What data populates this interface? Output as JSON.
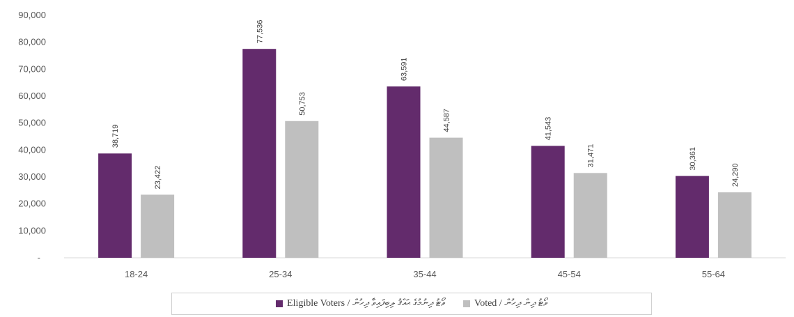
{
  "chart_data": {
    "type": "bar",
    "categories": [
      "18-24",
      "25-34",
      "35-44",
      "45-54",
      "55-64"
    ],
    "series": [
      {
        "name": "Eligible Voters / ވޯޓު ދިނުމުގެ ޙައްޤު ލިބިފައިވާ ދިހުން",
        "color": "#632b6c",
        "values": [
          38719,
          77536,
          63591,
          41543,
          30361
        ]
      },
      {
        "name": "Voted / ވޯޓު ދިން ދިހުން",
        "color": "#bfbfbf",
        "values": [
          23422,
          50753,
          44587,
          31471,
          24290
        ]
      }
    ],
    "value_labels": [
      [
        "38,719",
        "77,536",
        "63,591",
        "41,543",
        "30,361"
      ],
      [
        "23,422",
        "50,753",
        "44,587",
        "31,471",
        "24,290"
      ]
    ],
    "y_ticks": [
      {
        "value": 0,
        "label": "-"
      },
      {
        "value": 10000,
        "label": "10,000"
      },
      {
        "value": 20000,
        "label": "20,000"
      },
      {
        "value": 30000,
        "label": "30,000"
      },
      {
        "value": 40000,
        "label": "40,000"
      },
      {
        "value": 50000,
        "label": "50,000"
      },
      {
        "value": 60000,
        "label": "60,000"
      },
      {
        "value": 70000,
        "label": "70,000"
      },
      {
        "value": 80000,
        "label": "80,000"
      },
      {
        "value": 90000,
        "label": "90,000"
      }
    ],
    "ylim": [
      0,
      90000
    ],
    "grid": false,
    "legend_position": "bottom",
    "title": "",
    "xlabel": "",
    "ylabel": ""
  },
  "legend": {
    "eligible_label": "Eligible  Voters / ވޯޓު ދިނުމުގެ ޙައްޤު ލިބިފައިވާ ދިހުން",
    "voted_label": "Voted / ވޯޓު ދިން ދިހުން"
  }
}
